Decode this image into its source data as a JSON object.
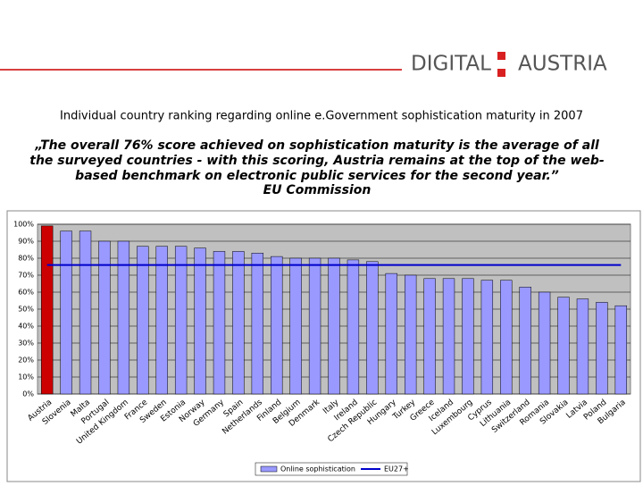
{
  "header": {
    "logo_left": "DIGITAL",
    "logo_right": "AUSTRIA"
  },
  "title": "Individual country ranking regarding online e.Government sophistication maturity in 2007",
  "quote": {
    "lines": [
      "„The overall 76% score achieved on sophistication maturity is the average of all",
      "the surveyed countries - with this scoring, Austria remains at the top of the web-",
      "based benchmark on electronic public services for the second year.”"
    ],
    "source": "EU Commission"
  },
  "chart_data": {
    "type": "bar",
    "categories": [
      "Austria",
      "Slovenia",
      "Malta",
      "Portugal",
      "United Kingdom",
      "France",
      "Sweden",
      "Estonia",
      "Norway",
      "Germany",
      "Spain",
      "Netherlands",
      "Finland",
      "Belgium",
      "Denmark",
      "Italy",
      "Ireland",
      "Czech Republic",
      "Hungary",
      "Turkey",
      "Greece",
      "Iceland",
      "Luxembourg",
      "Cyprus",
      "Lithuania",
      "Switzerland",
      "Romania",
      "Slovakia",
      "Latvia",
      "Poland",
      "Bulgaria"
    ],
    "series": [
      {
        "name": "Online sophistication",
        "color": "#9999ff",
        "highlight": "Austria",
        "highlight_color": "#cc0000",
        "values": [
          99,
          96,
          96,
          90,
          90,
          87,
          87,
          87,
          86,
          84,
          84,
          83,
          81,
          80,
          80,
          80,
          79,
          78,
          71,
          70,
          68,
          68,
          68,
          67,
          67,
          63,
          60,
          57,
          56,
          54,
          52
        ]
      },
      {
        "name": "EU27+",
        "type": "line",
        "color": "#0000cc",
        "value": 76
      }
    ],
    "ylim": [
      0,
      100
    ],
    "yticks": [
      {
        "value": 0,
        "label": "0%"
      },
      {
        "value": 10,
        "label": "10%"
      },
      {
        "value": 20,
        "label": "20%"
      },
      {
        "value": 30,
        "label": "30%"
      },
      {
        "value": 40,
        "label": "40%"
      },
      {
        "value": 50,
        "label": "50%"
      },
      {
        "value": 60,
        "label": "60%"
      },
      {
        "value": 70,
        "label": "70%"
      },
      {
        "value": 80,
        "label": "80%"
      },
      {
        "value": 90,
        "label": "90%"
      },
      {
        "value": 100,
        "label": "100%"
      }
    ],
    "grid": true,
    "legend": "bottom"
  }
}
